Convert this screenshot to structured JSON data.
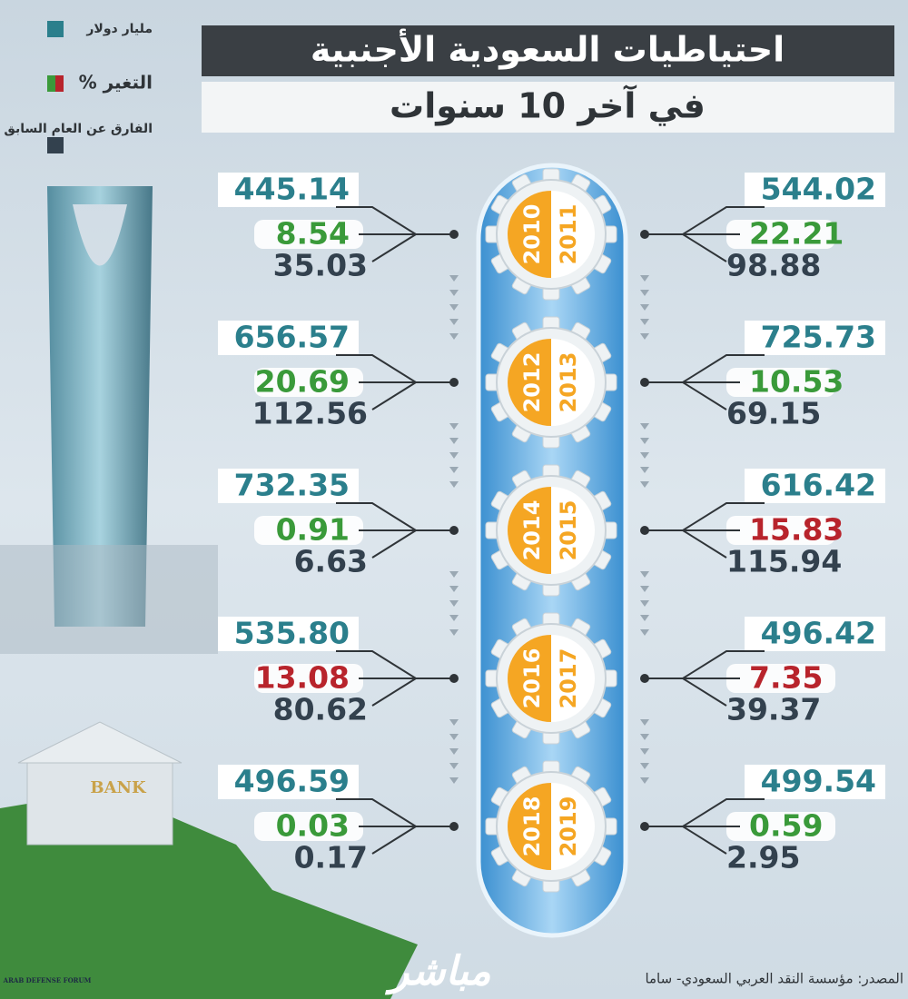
{
  "header": {
    "title": "احتياطيات السعودية الأجنبية",
    "subtitle": "في آخر 10 سنوات"
  },
  "legend": {
    "items": [
      {
        "label": "مليار دولار",
        "color": "#2b7f8c"
      },
      {
        "label": "التغير %",
        "color": "#3a9a3a"
      },
      {
        "label": "الفارق عن العام السابق",
        "color": "#33414e"
      }
    ]
  },
  "years": [
    {
      "year": "2010",
      "reserves": "445.14",
      "change": "8.54",
      "diff": "35.03",
      "change_color": "#3a9a3a"
    },
    {
      "year": "2011",
      "reserves": "544.02",
      "change": "22.21",
      "diff": "98.88",
      "change_color": "#3a9a3a"
    },
    {
      "year": "2012",
      "reserves": "656.57",
      "change": "20.69",
      "diff": "112.56",
      "change_color": "#3a9a3a"
    },
    {
      "year": "2013",
      "reserves": "725.73",
      "change": "10.53",
      "diff": "69.15",
      "change_color": "#3a9a3a"
    },
    {
      "year": "2014",
      "reserves": "732.35",
      "change": "0.91",
      "diff": "6.63",
      "change_color": "#3a9a3a"
    },
    {
      "year": "2015",
      "reserves": "616.42",
      "change": "15.83",
      "diff": "115.94",
      "change_color": "#b8242c"
    },
    {
      "year": "2016",
      "reserves": "535.80",
      "change": "13.08",
      "diff": "80.62",
      "change_color": "#b8242c"
    },
    {
      "year": "2017",
      "reserves": "496.42",
      "change": "7.35",
      "diff": "39.37",
      "change_color": "#b8242c"
    },
    {
      "year": "2018",
      "reserves": "496.59",
      "change": "0.03",
      "diff": "0.17",
      "change_color": "#3a9a3a"
    },
    {
      "year": "2019",
      "reserves": "499.54",
      "change": "0.59",
      "diff": "2.95",
      "change_color": "#3a9a3a"
    }
  ],
  "footer": {
    "source": "المصدر: مؤسسة النقد العربي السعودي- ساما",
    "logo": "مباشر",
    "watermark": "ARAB DEFENSE FORUM"
  }
}
